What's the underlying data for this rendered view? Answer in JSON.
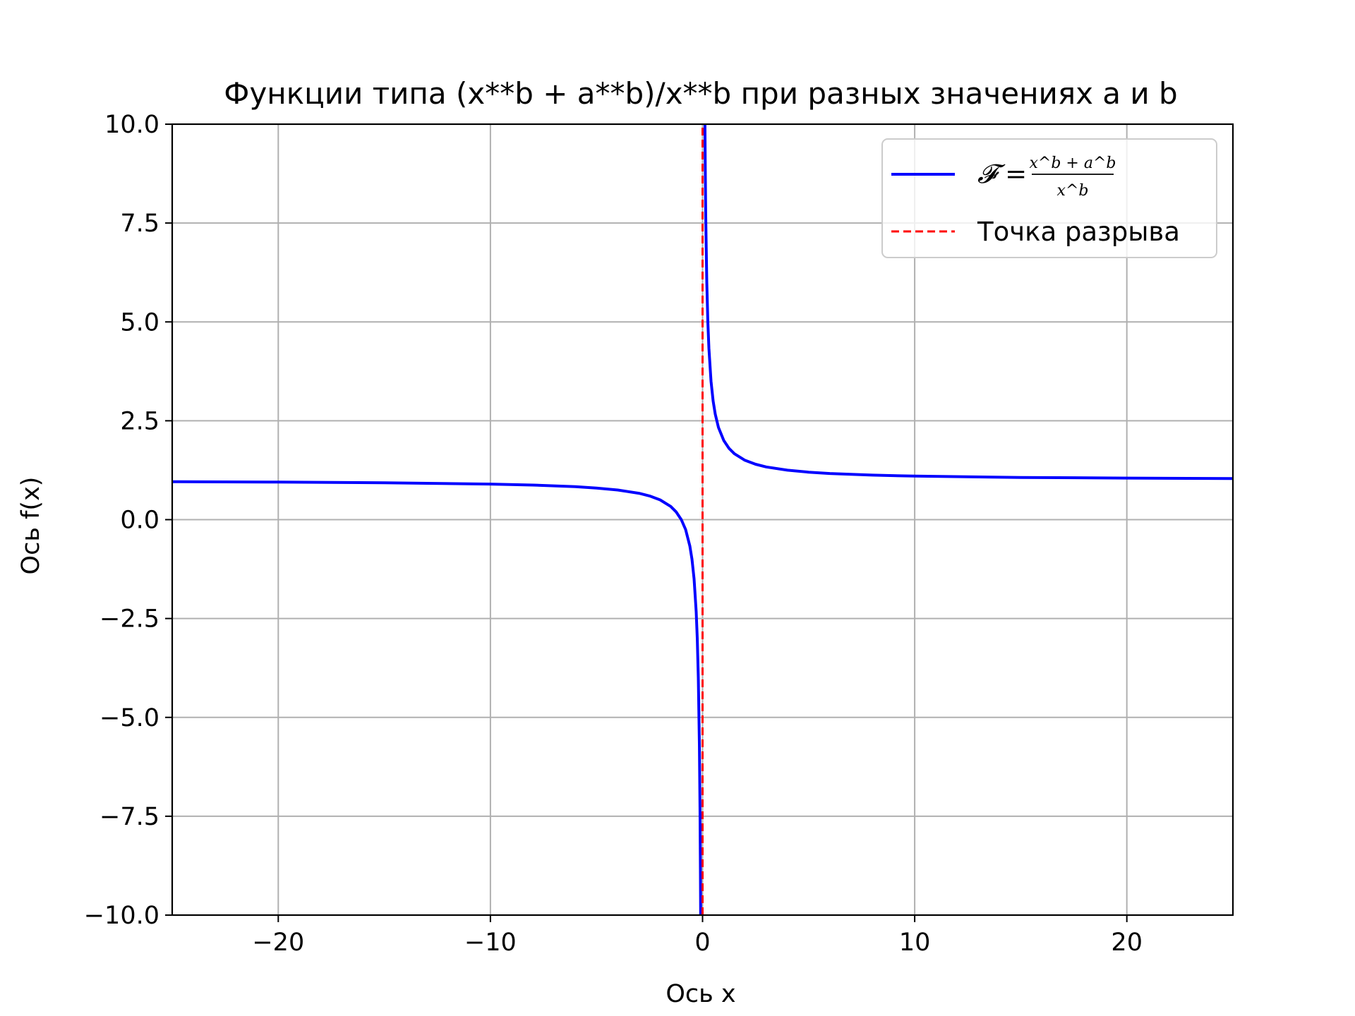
{
  "chart_data": {
    "type": "line",
    "title": "Функции типа (x**b + a**b)/x**b при разных значениях a и b",
    "xlabel": "Ось x",
    "ylabel": "Ось f(x)",
    "xlim": [
      -25,
      25
    ],
    "ylim": [
      -10,
      10
    ],
    "grid": true,
    "legend_position": "top-right",
    "x_ticks": [
      -20,
      -10,
      0,
      10,
      20
    ],
    "x_tick_labels": [
      "−20",
      "−10",
      "0",
      "10",
      "20"
    ],
    "y_ticks": [
      10,
      7.5,
      5,
      2.5,
      0,
      -2.5,
      -5,
      -7.5,
      -10
    ],
    "y_tick_labels": [
      "10.0",
      "7.5",
      "5.0",
      "2.5",
      "0.0",
      "−2.5",
      "−5.0",
      "−7.5",
      "−10.0"
    ],
    "series": [
      {
        "name": "𝓕 = (x^b + a^b) / x^b",
        "legend_math": {
          "lhs": "𝓕 =",
          "numerator": "x^b + a^b",
          "denominator": "x^b"
        },
        "style": "solid",
        "color": "#0000ff",
        "points": [
          [
            -25,
            0.96
          ],
          [
            -20,
            0.95
          ],
          [
            -15,
            0.933
          ],
          [
            -10,
            0.9
          ],
          [
            -8,
            0.875
          ],
          [
            -6,
            0.833
          ],
          [
            -5,
            0.8
          ],
          [
            -4,
            0.75
          ],
          [
            -3,
            0.667
          ],
          [
            -2.5,
            0.6
          ],
          [
            -2,
            0.5
          ],
          [
            -1.5,
            0.333
          ],
          [
            -1.25,
            0.2
          ],
          [
            -1,
            0
          ],
          [
            -0.8,
            -0.25
          ],
          [
            -0.6,
            -0.667
          ],
          [
            -0.5,
            -1
          ],
          [
            -0.4,
            -1.5
          ],
          [
            -0.3,
            -2.333
          ],
          [
            -0.25,
            -3
          ],
          [
            -0.2,
            -4
          ],
          [
            -0.15,
            -5.667
          ],
          [
            -0.12,
            -7.333
          ],
          [
            -0.1,
            -9
          ],
          [
            -0.09,
            -10
          ]
        ]
      },
      {
        "name": "",
        "legend_hidden": true,
        "style": "solid",
        "color": "#0000ff",
        "points": [
          [
            0.09,
            12.11
          ],
          [
            0.1,
            11
          ],
          [
            0.125,
            9
          ],
          [
            0.15,
            7.667
          ],
          [
            0.2,
            6
          ],
          [
            0.25,
            5
          ],
          [
            0.3,
            4.333
          ],
          [
            0.4,
            3.5
          ],
          [
            0.5,
            3
          ],
          [
            0.6,
            2.667
          ],
          [
            0.75,
            2.333
          ],
          [
            1,
            2
          ],
          [
            1.25,
            1.8
          ],
          [
            1.5,
            1.667
          ],
          [
            2,
            1.5
          ],
          [
            2.5,
            1.4
          ],
          [
            3,
            1.333
          ],
          [
            4,
            1.25
          ],
          [
            5,
            1.2
          ],
          [
            6,
            1.167
          ],
          [
            8,
            1.125
          ],
          [
            10,
            1.1
          ],
          [
            15,
            1.067
          ],
          [
            20,
            1.05
          ],
          [
            25,
            1.04
          ]
        ]
      },
      {
        "name": "Точка разрыва",
        "style": "dashed",
        "color": "#ff0000",
        "points": [
          [
            0,
            -10
          ],
          [
            0,
            10
          ]
        ]
      }
    ]
  }
}
